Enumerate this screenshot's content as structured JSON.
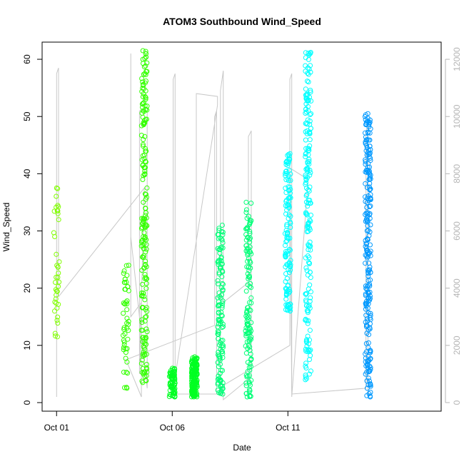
{
  "chart_data": {
    "type": "scatter",
    "title": "ATOM3 Southbound Wind_Speed",
    "xlabel": "Date",
    "ylabel": "Wind_Speed",
    "x_axis": {
      "type": "date",
      "range": [
        "2023-09-30T09:00",
        "2023-10-17T15:00"
      ],
      "ticks": [
        {
          "date": "2023-10-01T00:00",
          "label": "Oct 01"
        },
        {
          "date": "2023-10-06T00:00",
          "label": "Oct 06"
        },
        {
          "date": "2023-10-11T00:00",
          "label": "Oct 11"
        }
      ]
    },
    "y_axis": {
      "range": [
        -1.5,
        63
      ],
      "ticks": [
        0,
        10,
        20,
        30,
        40,
        50,
        60
      ]
    },
    "y2_axis": {
      "range": [
        -300,
        12600
      ],
      "ticks": [
        0,
        2000,
        4000,
        6000,
        8000,
        10000,
        12000
      ],
      "color": "#b5b5b5"
    },
    "grid": false,
    "series": [
      {
        "color": "#80ff00",
        "clusters": [
          {
            "date": "2023-10-01T00:00",
            "min": 11.5,
            "max": 37.5,
            "n": 40
          }
        ]
      },
      {
        "color": "#33ff00",
        "clusters": [
          {
            "date": "2023-10-04T00:00",
            "min": 2.5,
            "max": 24,
            "n": 50
          },
          {
            "date": "2023-10-04T19:00",
            "min": 3.5,
            "max": 61.5,
            "n": 200
          }
        ]
      },
      {
        "color": "#00ff22",
        "clusters": [
          {
            "date": "2023-10-06T00:00",
            "min": 1,
            "max": 6,
            "n": 70
          },
          {
            "date": "2023-10-06T23:00",
            "min": 1,
            "max": 8,
            "n": 160
          }
        ]
      },
      {
        "color": "#00ff77",
        "clusters": [
          {
            "date": "2023-10-08T02:00",
            "min": 1.5,
            "max": 31,
            "n": 130
          },
          {
            "date": "2023-10-09T07:00",
            "min": 1,
            "max": 35,
            "n": 130
          }
        ]
      },
      {
        "color": "#00ffff",
        "clusters": [
          {
            "date": "2023-10-11T00:00",
            "min": 16,
            "max": 43.5,
            "n": 130
          },
          {
            "date": "2023-10-11T21:00",
            "min": 4,
            "max": 61.2,
            "n": 190
          }
        ]
      },
      {
        "color": "#0099ff",
        "clusters": [
          {
            "date": "2023-10-14T11:00",
            "min": 1,
            "max": 50.5,
            "n": 230
          }
        ]
      }
    ],
    "secondary_line": {
      "color": "#c8c8c8",
      "points": [
        [
          "2023-10-01T00:00",
          200
        ],
        [
          "2023-10-01T00:00",
          11500
        ],
        [
          "2023-10-01T02:00",
          11700
        ],
        [
          "2023-10-01T02:00",
          3700
        ],
        [
          "2023-10-04T19:00",
          7500
        ],
        [
          "2023-10-04T14:00",
          1000
        ],
        [
          "2023-10-04T14:00",
          10200
        ],
        [
          "2023-10-04T22:00",
          10300
        ],
        [
          "2023-10-04T22:00",
          500
        ],
        [
          "2023-10-04T05:00",
          5800
        ],
        [
          "2023-10-04T05:00",
          12200
        ],
        [
          "2023-10-04T05:00",
          3000
        ],
        [
          "2023-10-04T16:00",
          3500
        ],
        [
          "2023-10-04T16:00",
          200
        ],
        [
          "2023-10-04T00:00",
          1500
        ],
        [
          "2023-10-07T20:00",
          2700
        ],
        [
          "2023-10-07T20:00",
          10000
        ],
        [
          "2023-10-07T22:00",
          10200
        ],
        [
          "2023-10-07T22:00",
          300
        ],
        [
          "2023-10-06T01:00",
          300
        ],
        [
          "2023-10-06T01:00",
          11300
        ],
        [
          "2023-10-06T03:00",
          11500
        ],
        [
          "2023-10-06T03:00",
          900
        ],
        [
          "2023-10-07T23:00",
          10400
        ],
        [
          "2023-10-07T23:00",
          10700
        ],
        [
          "2023-10-07T01:00",
          10800
        ],
        [
          "2023-10-07T01:00",
          300
        ],
        [
          "2023-10-08T02:00",
          300
        ],
        [
          "2023-10-08T02:00",
          10900
        ],
        [
          "2023-10-08T05:00",
          11600
        ],
        [
          "2023-10-08T05:00",
          3500
        ],
        [
          "2023-10-09T07:00",
          4200
        ],
        [
          "2023-10-09T07:00",
          9300
        ],
        [
          "2023-10-09T10:00",
          9500
        ],
        [
          "2023-10-09T10:00",
          900
        ],
        [
          "2023-10-08T05:00",
          100
        ],
        [
          "2023-10-08T05:00",
          600
        ],
        [
          "2023-10-11T02:00",
          2000
        ],
        [
          "2023-10-11T02:00",
          11300
        ],
        [
          "2023-10-11T04:00",
          11500
        ],
        [
          "2023-10-11T04:00",
          200
        ],
        [
          "2023-10-11T21:00",
          7800
        ],
        [
          "2023-10-11T02:00",
          8200
        ],
        [
          "2023-10-11T04:00",
          300
        ],
        [
          "2023-10-14T09:00",
          500
        ],
        [
          "2023-10-14T09:00",
          9500
        ],
        [
          "2023-10-14T11:00",
          9700
        ],
        [
          "2023-10-14T11:00",
          300
        ]
      ]
    }
  }
}
